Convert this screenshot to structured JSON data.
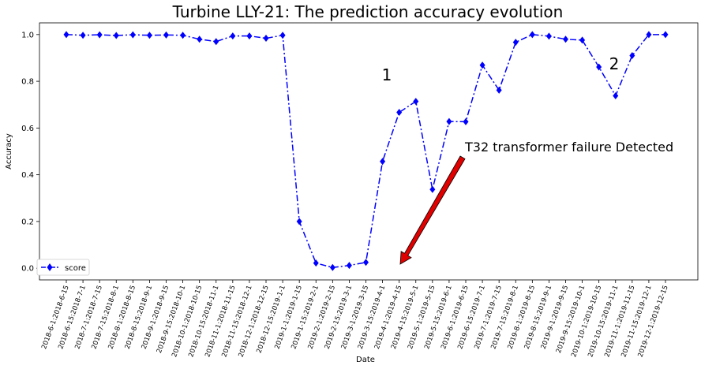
{
  "chart_data": {
    "type": "line",
    "title": "Turbine LLY-21: The prediction accuracy evolution",
    "xlabel": "Date",
    "ylabel": "Accuracy",
    "ylim": [
      -0.05,
      1.05
    ],
    "yticks": [
      "0.0",
      "0.2",
      "0.4",
      "0.6",
      "0.8",
      "1.0"
    ],
    "categories": [
      "2018-6-1:2018-6-15",
      "2018-6-15:2018-7-1",
      "2018-7-1:2018-7-15",
      "2018-7-15:2018-8-1",
      "2018-8-1:2018-8-15",
      "2018-8-15:2018-9-1",
      "2018-9-1:2018-9-15",
      "2018-9-15:2018-10-1",
      "2018-10-1:2018-10-15",
      "2018-10-15:2018-11-1",
      "2018-11-1:2018-11-15",
      "2018-11-15:2018-12-1",
      "2018-12-1:2018-12-15",
      "2018-12-15:2019-1-1",
      "2019-1-1:2019-1-15",
      "2019-1-15:2019-2-1",
      "2019-2-1:2019-2-15",
      "2019-2-15:2019-3-1",
      "2019-3-1:2019-3-15",
      "2019-3-15:2019-4-1",
      "2019-4-1:2019-4-15",
      "2019-4-15:2019-5-1",
      "2019-5-1:2019-5-15",
      "2019-5-15:2019-6-1",
      "2019-6-1:2019-6-15",
      "2019-6-15:2019-7-1",
      "2019-7-1:2019-7-15",
      "2019-7-15:2019-8-1",
      "2019-8-1:2019-8-15",
      "2019-8-15:2019-9-1",
      "2019-9-1:2019-9-15",
      "2019-9-15:2019-10-1",
      "2019-10-1:2019-10-15",
      "2019-10-15:2019-11-1",
      "2019-11-1:2019-11-15",
      "2019-11-15:2019-12-1",
      "2019-12-1:2019-12-15"
    ],
    "series": [
      {
        "name": "score",
        "color": "#0000ff",
        "values": [
          1.0,
          0.997,
          0.999,
          0.996,
          0.999,
          0.997,
          0.998,
          0.997,
          0.98,
          0.97,
          0.994,
          0.994,
          0.984,
          0.997,
          0.2,
          0.022,
          0.003,
          0.012,
          0.025,
          0.457,
          0.667,
          0.714,
          0.337,
          0.628,
          0.627,
          0.869,
          0.762,
          0.967,
          1.0,
          0.993,
          0.98,
          0.976,
          0.861,
          0.738,
          0.91,
          1.0,
          1.0
        ]
      }
    ],
    "legend_position": "bottom-left",
    "grid": false,
    "annotations": {
      "label_1": "1",
      "label_2": "2",
      "failure_text": "T32 transformer failure Detected",
      "arrow_color": "#e00000",
      "arrow_points_to_category": "2019-4-1:2019-4-15"
    }
  }
}
